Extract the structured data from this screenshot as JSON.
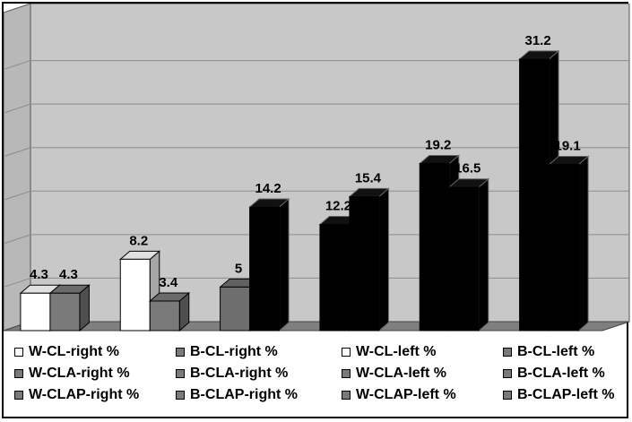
{
  "chart_data": {
    "type": "bar",
    "style": "3d-clustered",
    "title": "",
    "xlabel": "",
    "ylabel": "",
    "ylim": [
      0,
      35
    ],
    "grid": true,
    "legend_position": "bottom",
    "groups": [
      {
        "bars": [
          {
            "value": 4.3,
            "label": "4.3",
            "color": "#ffffff"
          },
          {
            "value": 4.3,
            "label": "4.3",
            "color": "#7a7a7a"
          }
        ]
      },
      {
        "bars": [
          {
            "value": 8.2,
            "label": "8.2",
            "color": "#ffffff"
          },
          {
            "value": 3.4,
            "label": "3.4",
            "color": "#7a7a7a"
          }
        ]
      },
      {
        "bars": [
          {
            "value": 5,
            "label": "5",
            "color": "#6e6e6e"
          },
          {
            "value": 14.2,
            "label": "14.2",
            "color": "#000000"
          }
        ]
      },
      {
        "bars": [
          {
            "value": 12.2,
            "label": "12.2",
            "color": "#000000"
          },
          {
            "value": 15.4,
            "label": "15.4",
            "color": "#000000"
          }
        ]
      },
      {
        "bars": [
          {
            "value": 19.2,
            "label": "19.2",
            "color": "#000000"
          },
          {
            "value": 16.5,
            "label": "16.5",
            "color": "#000000"
          }
        ]
      },
      {
        "bars": [
          {
            "value": 31.2,
            "label": "31.2",
            "color": "#000000"
          },
          {
            "value": 19.1,
            "label": "19.1",
            "color": "#000000"
          }
        ]
      }
    ],
    "legend": [
      {
        "name": "W-CL-right %",
        "color": "#ffffff"
      },
      {
        "name": "B-CL-right %",
        "color": "#7a7a7a"
      },
      {
        "name": "W-CL-left %",
        "color": "#ffffff"
      },
      {
        "name": "B-CL-left %",
        "color": "#7a7a7a"
      },
      {
        "name": "W-CLA-right %",
        "color": "#7a7a7a"
      },
      {
        "name": "B-CLA-right %",
        "color": "#7a7a7a"
      },
      {
        "name": "W-CLA-left %",
        "color": "#7a7a7a"
      },
      {
        "name": "B-CLA-left %",
        "color": "#7a7a7a"
      },
      {
        "name": "W-CLAP-right %",
        "color": "#7a7a7a"
      },
      {
        "name": "B-CLAP-right %",
        "color": "#7a7a7a"
      },
      {
        "name": "W-CLAP-left %",
        "color": "#7a7a7a"
      },
      {
        "name": "B-CLAP-left %",
        "color": "#7a7a7a"
      }
    ],
    "colors": {
      "wall": "#c8c8c8",
      "floor": "#7f7f7f",
      "gridline": "#8c8c8c"
    }
  }
}
